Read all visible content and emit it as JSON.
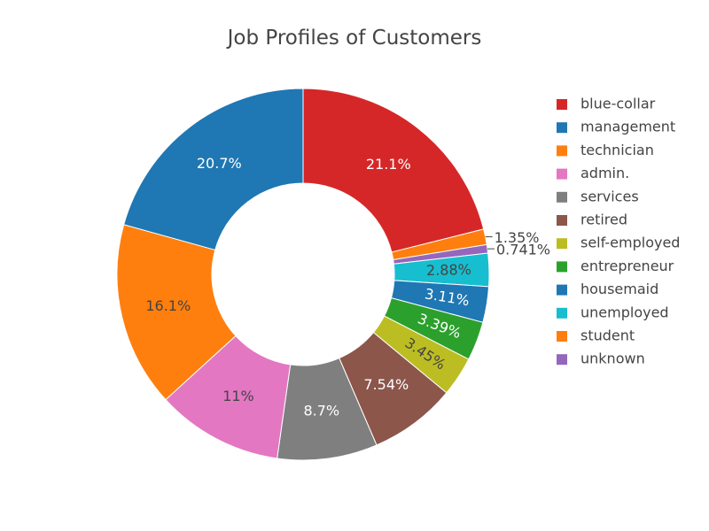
{
  "chart_data": {
    "type": "pie",
    "hole": true,
    "title": "Job Profiles of Customers",
    "legend_position": "right",
    "categories": [
      "blue-collar",
      "management",
      "technician",
      "admin.",
      "services",
      "retired",
      "self-employed",
      "entrepreneur",
      "housemaid",
      "unemployed",
      "student",
      "unknown"
    ],
    "values": [
      21.1,
      20.7,
      16.1,
      11,
      8.7,
      7.54,
      3.45,
      3.39,
      3.11,
      2.88,
      1.35,
      0.741
    ],
    "labels": [
      "21.1%",
      "20.7%",
      "16.1%",
      "11%",
      "8.7%",
      "7.54%",
      "3.45%",
      "3.39%",
      "3.11%",
      "2.88%",
      "1.35%",
      "0.741%"
    ],
    "colors": [
      "#d62728",
      "#1f77b4",
      "#ff7f0e",
      "#e377c2",
      "#7f7f7f",
      "#8c564b",
      "#bcbd22",
      "#2ca02c",
      "#1f77b4",
      "#17becf",
      "#ff7f0e",
      "#9467bd"
    ],
    "slice_order": [
      0,
      10,
      11,
      9,
      8,
      7,
      6,
      5,
      4,
      3,
      2,
      1
    ]
  }
}
